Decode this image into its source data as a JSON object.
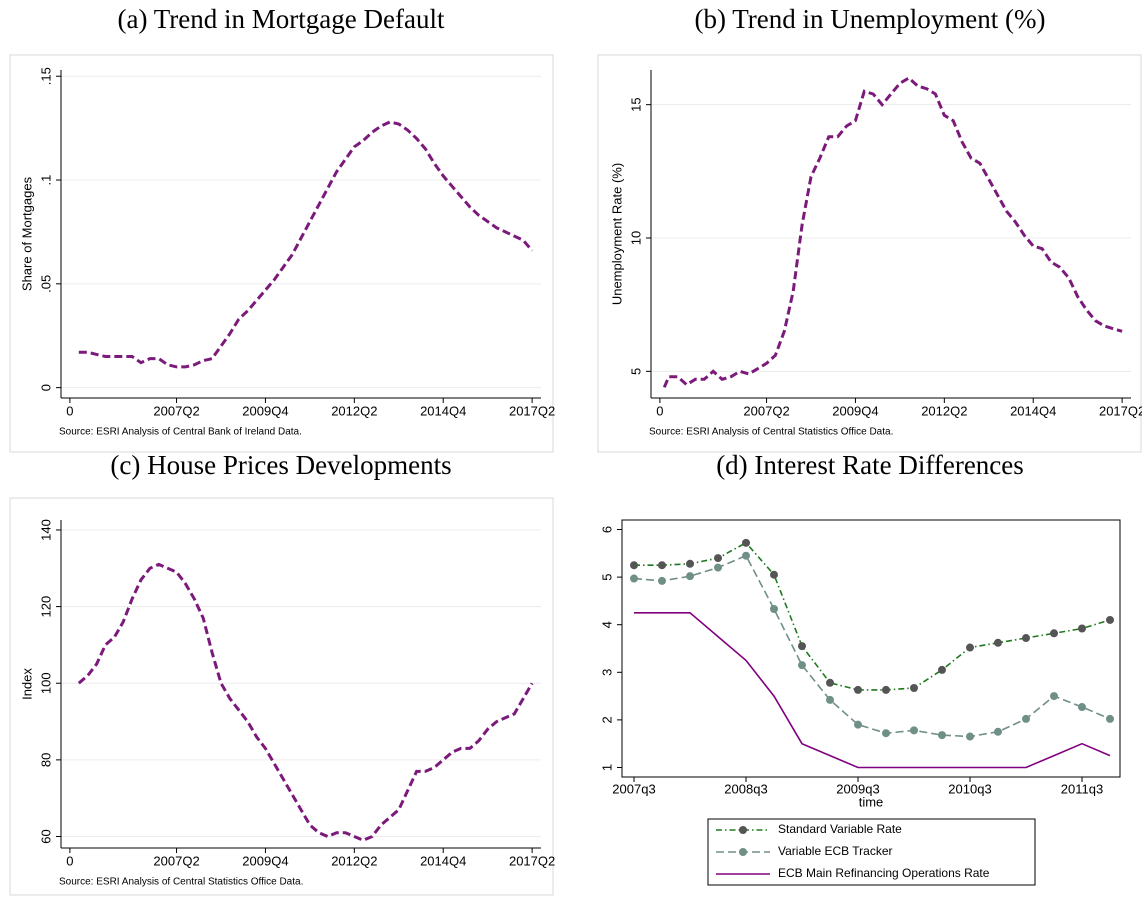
{
  "chart_data": [
    {
      "type": "line",
      "title": "(a) Trend in Mortgage Default",
      "ylabel": "Share of Mortgages",
      "source": "Source:  ESRI Analysis of Central Bank of Ireland Data.",
      "x": [
        1,
        2,
        3,
        4,
        5,
        6,
        7,
        8,
        9,
        10,
        11,
        12,
        13,
        14,
        15,
        16,
        17,
        18,
        19,
        20,
        21,
        22,
        23,
        24,
        25,
        26,
        27,
        28,
        29,
        30,
        31,
        32,
        33,
        34,
        35,
        36,
        37,
        38,
        39,
        40,
        41,
        42,
        43,
        44,
        45,
        46,
        47,
        48,
        49,
        50,
        51,
        52
      ],
      "values": [
        0.017,
        0.017,
        0.016,
        0.015,
        0.015,
        0.015,
        0.015,
        0.012,
        0.014,
        0.014,
        0.011,
        0.01,
        0.01,
        0.011,
        0.013,
        0.014,
        0.02,
        0.026,
        0.033,
        0.037,
        0.042,
        0.047,
        0.052,
        0.058,
        0.064,
        0.072,
        0.08,
        0.088,
        0.096,
        0.104,
        0.11,
        0.116,
        0.119,
        0.123,
        0.126,
        0.128,
        0.127,
        0.124,
        0.12,
        0.115,
        0.108,
        0.102,
        0.097,
        0.092,
        0.087,
        0.083,
        0.08,
        0.077,
        0.075,
        0.073,
        0.071,
        0.066
      ],
      "color": "#7b1a7b",
      "linestyle": "dashed",
      "xlim": [
        -1,
        53
      ],
      "ylim": [
        -0.005,
        0.153
      ],
      "xticks": [
        0,
        {
          "value": 12,
          "label": "2007Q2"
        },
        {
          "value": 22,
          "label": "2009Q4"
        },
        {
          "value": 32,
          "label": "2012Q2"
        },
        {
          "value": 42,
          "label": "2014Q4"
        },
        {
          "value": 52,
          "label": "2017Q2"
        }
      ],
      "yticks": [
        0,
        {
          "value": 0.05,
          "label": ".05"
        },
        {
          "value": 0.1,
          "label": ".1"
        },
        {
          "value": 0.15,
          "label": ".15"
        }
      ],
      "grid": true
    },
    {
      "type": "line",
      "title": "(b) Trend in Unemployment (%)",
      "ylabel": "Unemployment Rate (%)",
      "source": "Source:  ESRI Analysis of Central Statistics Office Data.",
      "x": [
        0.5,
        1,
        2,
        3,
        4,
        5,
        6,
        7,
        8,
        9,
        10,
        11,
        12,
        13,
        14,
        15,
        16,
        17,
        18,
        19,
        20,
        21,
        22,
        23,
        24,
        25,
        26,
        27,
        28,
        29,
        30,
        31,
        32,
        33,
        34,
        35,
        36,
        37,
        38,
        39,
        40,
        41,
        42,
        43,
        44,
        45,
        46,
        47,
        48,
        49,
        50,
        51,
        52
      ],
      "values": [
        4.4,
        4.8,
        4.8,
        4.5,
        4.7,
        4.7,
        5.0,
        4.7,
        4.8,
        5.0,
        4.9,
        5.1,
        5.3,
        5.6,
        6.5,
        8.0,
        10.5,
        12.3,
        13.0,
        13.8,
        13.8,
        14.2,
        14.4,
        15.5,
        15.4,
        15.0,
        15.4,
        15.8,
        16.0,
        15.7,
        15.6,
        15.4,
        14.6,
        14.4,
        13.6,
        13.0,
        12.8,
        12.2,
        11.6,
        11.0,
        10.6,
        10.1,
        9.7,
        9.6,
        9.1,
        8.9,
        8.5,
        7.8,
        7.3,
        6.9,
        6.7,
        6.6,
        6.5
      ],
      "color": "#7b1a7b",
      "linestyle": "dashed",
      "xlim": [
        -1,
        53
      ],
      "ylim": [
        4,
        16.3
      ],
      "xticks": [
        0,
        {
          "value": 12,
          "label": "2007Q2"
        },
        {
          "value": 22,
          "label": "2009Q4"
        },
        {
          "value": 32,
          "label": "2012Q2"
        },
        {
          "value": 42,
          "label": "2014Q4"
        },
        {
          "value": 52,
          "label": "2017Q2"
        }
      ],
      "yticks": [
        5,
        10,
        15
      ],
      "grid": true
    },
    {
      "type": "line",
      "title": "(c) House Prices Developments",
      "ylabel": "Index",
      "source": "Source:  ESRI Analysis of Central Statistics Office Data.",
      "x": [
        1,
        2,
        3,
        4,
        5,
        6,
        7,
        8,
        9,
        10,
        11,
        12,
        13,
        14,
        15,
        16,
        17,
        18,
        19,
        20,
        21,
        22,
        23,
        24,
        25,
        26,
        27,
        28,
        29,
        30,
        31,
        32,
        33,
        34,
        35,
        36,
        37,
        38,
        39,
        40,
        41,
        42,
        43,
        44,
        45,
        46,
        47,
        48,
        49,
        50,
        51,
        52
      ],
      "values": [
        100,
        102,
        105,
        110,
        112,
        116,
        122,
        127,
        130,
        131,
        130,
        129,
        126,
        122,
        117,
        108,
        100,
        96,
        93,
        90,
        86,
        83,
        79,
        75,
        71,
        67,
        63,
        61,
        60,
        61,
        61,
        60,
        59,
        60,
        63,
        65,
        67,
        72,
        77,
        77,
        78,
        80,
        82,
        83,
        83,
        85,
        88,
        90,
        91,
        92,
        96,
        100
      ],
      "color": "#7b1a7b",
      "linestyle": "dashed",
      "xlim": [
        -1,
        53
      ],
      "ylim": [
        57,
        142.6
      ],
      "xticks": [
        0,
        {
          "value": 12,
          "label": "2007Q2"
        },
        {
          "value": 22,
          "label": "2009Q4"
        },
        {
          "value": 32,
          "label": "2012Q2"
        },
        {
          "value": 42,
          "label": "2014Q4"
        },
        {
          "value": 52,
          "label": "2017Q2"
        }
      ],
      "yticks": [
        60,
        80,
        100,
        120,
        140
      ],
      "grid": true
    },
    {
      "type": "line",
      "title": "(d) Interest Rate Differences",
      "xlabel": "time",
      "categories": [
        "2007q3",
        null,
        null,
        null,
        "2008q3",
        null,
        null,
        null,
        "2009q3",
        null,
        null,
        null,
        "2010q3",
        null,
        null,
        null,
        "2011q3",
        null
      ],
      "series": [
        {
          "name": "Standard Variable Rate",
          "color": "#1f7a1f",
          "marker_color": "#555555",
          "linestyle": "dash-dot",
          "values": [
            5.25,
            5.25,
            5.28,
            5.4,
            5.72,
            5.05,
            3.55,
            2.78,
            2.63,
            2.63,
            2.67,
            3.05,
            3.52,
            3.62,
            3.72,
            3.82,
            3.92,
            4.1
          ]
        },
        {
          "name": "Variable ECB Tracker",
          "color": "#6f8f87",
          "marker_color": "#6f8f87",
          "linestyle": "dashed",
          "values": [
            4.97,
            4.92,
            5.02,
            5.2,
            5.45,
            4.33,
            3.15,
            2.42,
            1.9,
            1.72,
            1.78,
            1.68,
            1.65,
            1.75,
            2.02,
            2.5,
            2.27,
            2.02
          ]
        },
        {
          "name": "ECB Main Refinancing Operations Rate",
          "color": "#800080",
          "linestyle": "solid",
          "values": [
            4.25,
            4.25,
            4.25,
            3.75,
            3.25,
            2.5,
            1.5,
            1.25,
            1.0,
            1.0,
            1.0,
            1.0,
            1.0,
            1.0,
            1.0,
            1.25,
            1.5,
            1.25
          ]
        }
      ],
      "ylim": [
        0.8,
        6.2
      ],
      "yticks": [
        1,
        2,
        3,
        4,
        5,
        6
      ],
      "grid": false,
      "legend": "bottom"
    }
  ]
}
